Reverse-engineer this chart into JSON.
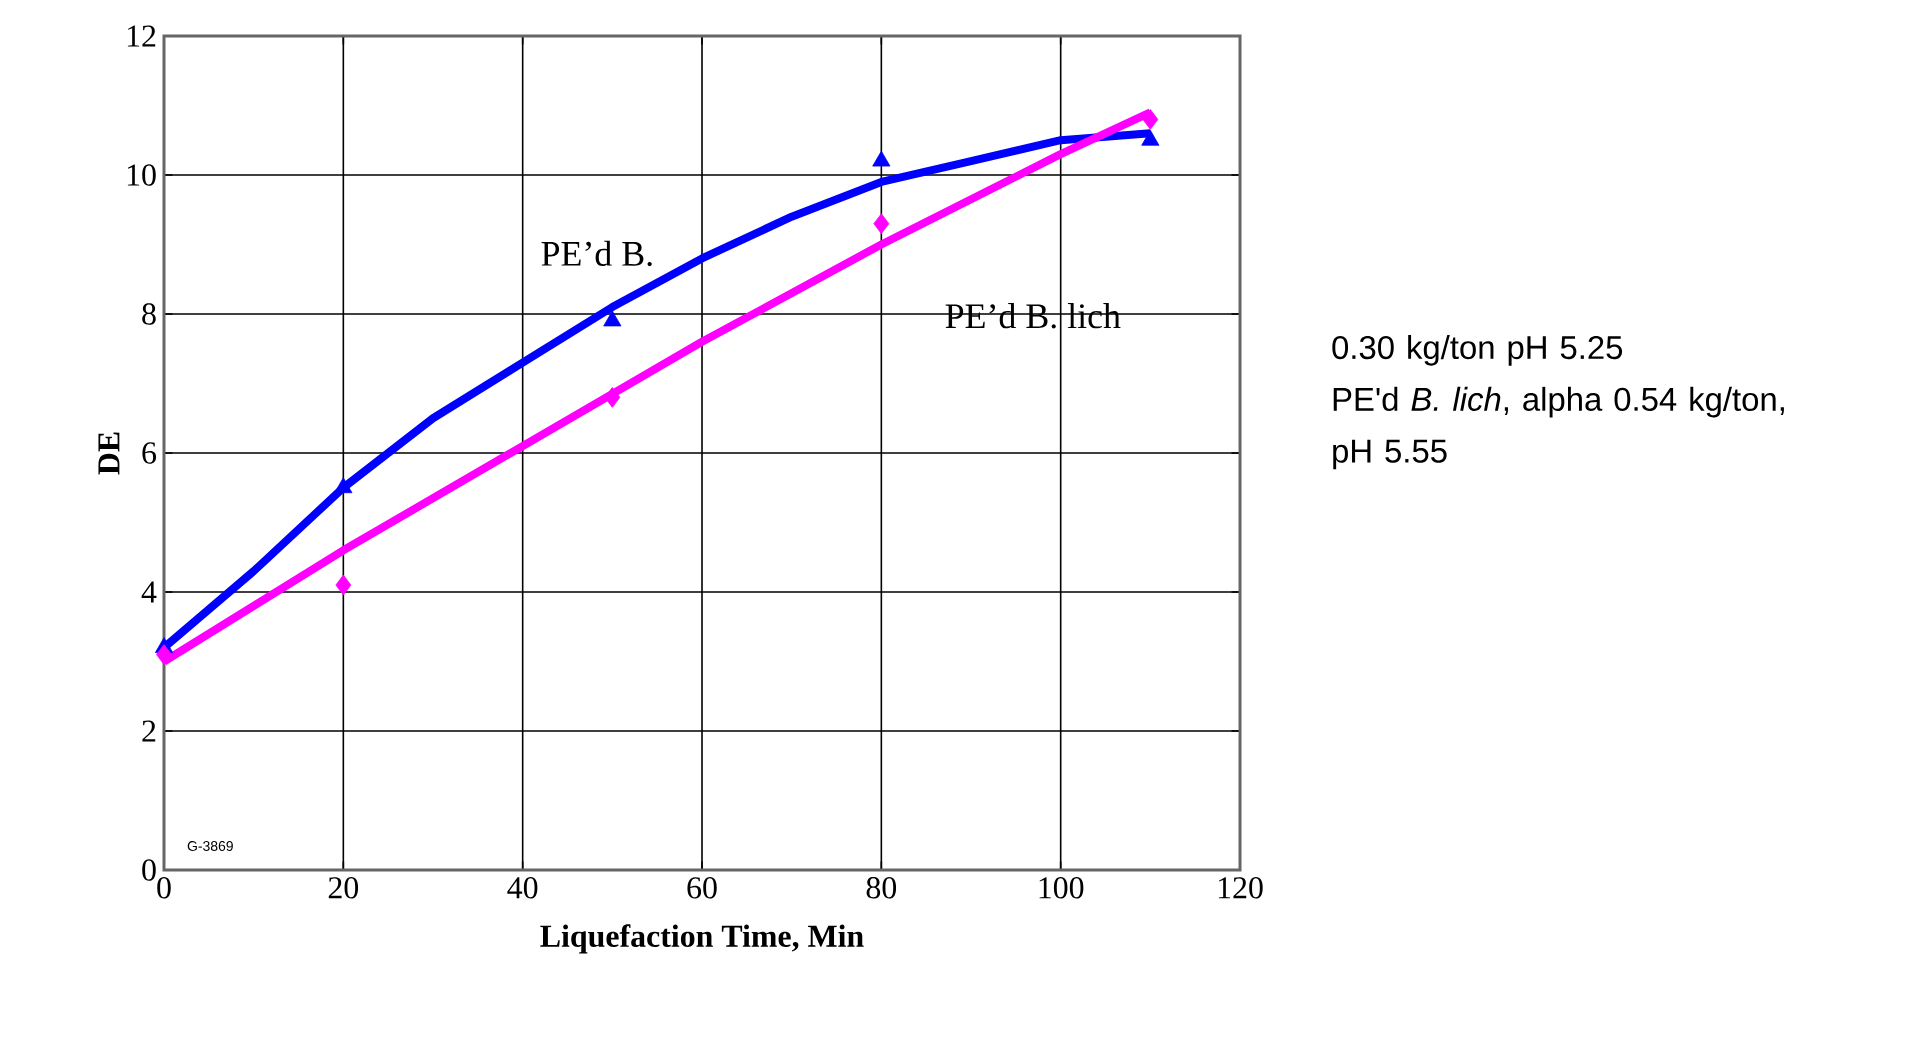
{
  "chart_data": {
    "type": "line",
    "xlabel": "Liquefaction Time, Min",
    "ylabel": "DE",
    "xlim": [
      0,
      120
    ],
    "ylim": [
      0,
      12
    ],
    "xticks": [
      0,
      20,
      40,
      60,
      80,
      100,
      120
    ],
    "yticks": [
      0,
      2,
      4,
      6,
      8,
      10,
      12
    ],
    "grid": true,
    "series": [
      {
        "type": "scatter",
        "marker": "triangle",
        "color": "#0000ff",
        "x": [
          0,
          20,
          50,
          80,
          110
        ],
        "values": [
          3.2,
          5.5,
          7.9,
          10.2,
          10.5
        ]
      },
      {
        "type": "scatter",
        "marker": "diamond",
        "color": "#ff00ff",
        "x": [
          0,
          20,
          50,
          80,
          110
        ],
        "values": [
          3.1,
          4.1,
          6.8,
          9.3,
          10.8
        ]
      },
      {
        "name": "PE’d B.",
        "marker": "none",
        "color": "#0000ff",
        "x": [
          0,
          10,
          20,
          30,
          40,
          50,
          60,
          70,
          80,
          90,
          100,
          110
        ],
        "values": [
          3.2,
          4.3,
          5.5,
          6.5,
          7.3,
          8.1,
          8.8,
          9.4,
          9.9,
          10.2,
          10.5,
          10.6
        ]
      },
      {
        "name": "PE’d B. lich",
        "marker": "none",
        "color": "#ff00ff",
        "x": [
          0,
          20,
          40,
          60,
          80,
          100,
          110
        ],
        "values": [
          3.0,
          4.6,
          6.1,
          7.6,
          9.0,
          10.3,
          10.9
        ]
      }
    ],
    "annotations": [
      "G-3869",
      "0.30 kg/ton pH 5.25",
      "PE'd *B. lich*, alpha 0.54 kg/ton, pH 5.55"
    ]
  }
}
